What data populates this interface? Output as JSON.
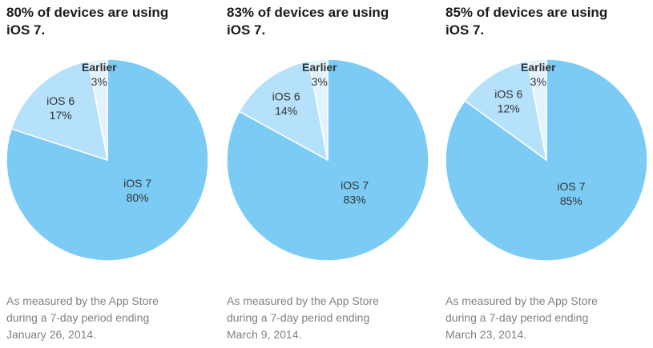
{
  "chart_data": [
    {
      "type": "pie",
      "title_lines": [
        "80% of devices are using",
        "iOS 7."
      ],
      "slices": [
        {
          "label": "iOS 7",
          "value_label": "80%",
          "value": 80,
          "color": "#7ccbf5"
        },
        {
          "label": "iOS 6",
          "value_label": "17%",
          "value": 17,
          "color": "#b5e1fa"
        },
        {
          "label": "Earlier",
          "value_label": "3%",
          "value": 3,
          "color": "#e3f3fd"
        }
      ],
      "caption_lines": [
        "As measured by the App Store",
        "during a 7-day period ending",
        "January 26, 2014."
      ]
    },
    {
      "type": "pie",
      "title_lines": [
        "83% of devices are using",
        "iOS 7."
      ],
      "slices": [
        {
          "label": "iOS 7",
          "value_label": "83%",
          "value": 83,
          "color": "#7ccbf5"
        },
        {
          "label": "iOS 6",
          "value_label": "14%",
          "value": 14,
          "color": "#b5e1fa"
        },
        {
          "label": "Earlier",
          "value_label": "3%",
          "value": 3,
          "color": "#e3f3fd"
        }
      ],
      "caption_lines": [
        "As measured by the App Store",
        "during a 7-day period ending",
        "March 9, 2014."
      ]
    },
    {
      "type": "pie",
      "title_lines": [
        "85% of devices are using",
        "iOS 7."
      ],
      "slices": [
        {
          "label": "iOS 7",
          "value_label": "85%",
          "value": 85,
          "color": "#7ccbf5"
        },
        {
          "label": "iOS 6",
          "value_label": "12%",
          "value": 12,
          "color": "#b5e1fa"
        },
        {
          "label": "Earlier",
          "value_label": "3%",
          "value": 3,
          "color": "#e3f3fd"
        }
      ],
      "caption_lines": [
        "As measured by the App Store",
        "during a 7-day period ending",
        "March 23, 2014."
      ]
    }
  ]
}
